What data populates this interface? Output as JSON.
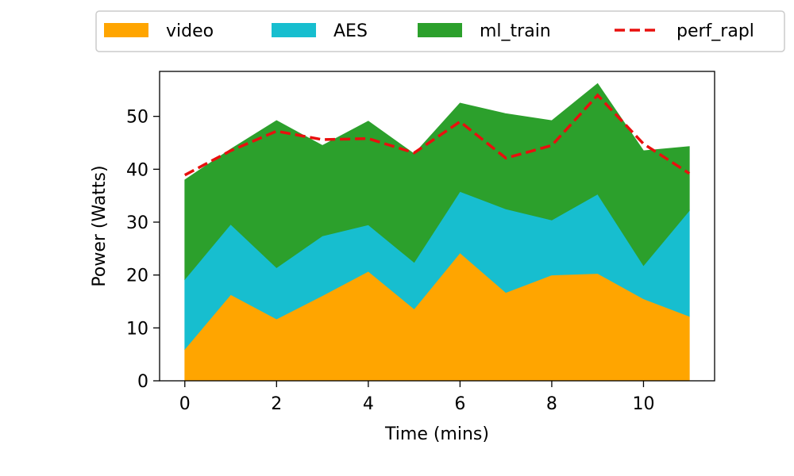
{
  "chart_data": {
    "type": "area",
    "stacked": true,
    "title": "",
    "xlabel": "Time (mins)",
    "ylabel": "Power (Watts)",
    "x": [
      0,
      1,
      2,
      3,
      4,
      5,
      6,
      7,
      8,
      9,
      10,
      11
    ],
    "xlim": [
      -0.55,
      11.55
    ],
    "ylim": [
      0,
      58.5
    ],
    "xticks": [
      0,
      2,
      4,
      6,
      8,
      10
    ],
    "yticks": [
      0,
      10,
      20,
      30,
      40,
      50
    ],
    "grid": false,
    "legend_position": "top-center",
    "series": [
      {
        "name": "video",
        "kind": "area",
        "color": "#ffa500",
        "values": [
          6.0,
          16.3,
          11.7,
          16.1,
          20.7,
          13.6,
          24.2,
          16.7,
          20.0,
          20.3,
          15.5,
          12.2
        ]
      },
      {
        "name": "AES",
        "kind": "area",
        "color": "#17becf",
        "values": [
          13.2,
          13.3,
          9.7,
          11.3,
          8.8,
          8.8,
          11.6,
          15.8,
          10.4,
          15.0,
          6.3,
          20.0
        ]
      },
      {
        "name": "ml_train",
        "kind": "area",
        "color": "#2ca02c",
        "values": [
          18.8,
          14.2,
          27.8,
          17.1,
          19.6,
          20.5,
          16.7,
          18.0,
          18.8,
          20.9,
          21.7,
          12.1
        ]
      },
      {
        "name": "perf_rapl",
        "kind": "line",
        "style": "dashed",
        "color": "#e8100e",
        "values": [
          38.9,
          43.5,
          47.2,
          45.6,
          45.8,
          43.1,
          49.0,
          42.1,
          44.5,
          54.0,
          44.8,
          39.2
        ]
      }
    ]
  }
}
